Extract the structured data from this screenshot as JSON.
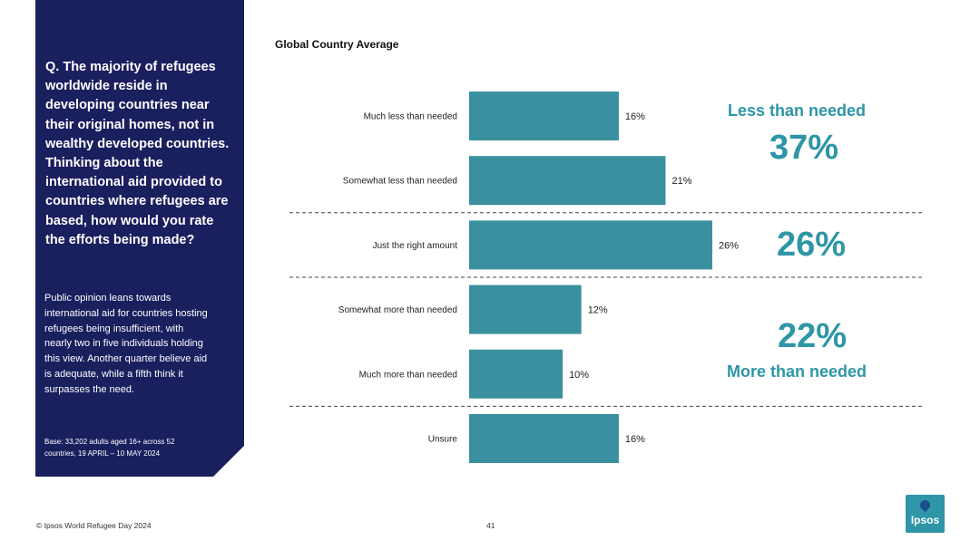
{
  "sidebar": {
    "question": "Q. The majority of refugees worldwide reside in developing countries near their original homes, not in wealthy developed countries. Thinking about the international aid provided to countries where refugees are based, how would you rate the efforts being made?",
    "summary": "Public opinion leans towards international aid for countries hosting refugees being insufficient, with nearly two in five individuals holding this view. Another quarter believe aid is adequate, while a fifth think it surpasses the need.",
    "base": "Base: 33,202 adults aged 16+ across 52 countries, 19 APRIL – 10 MAY 2024"
  },
  "groups": {
    "less_name": "Less than needed",
    "less_pct": "37%",
    "right_pct": "26%",
    "more_pct": "22%",
    "more_name": "More than needed"
  },
  "footer": {
    "copyright": "© Ipsos World Refugee Day 2024",
    "page": "41",
    "logo": "Ipsos"
  },
  "colors": {
    "bar": "#3a909e",
    "accent": "#2e96a6",
    "sidebar": "#1a1f5e"
  },
  "chart_data": {
    "type": "bar",
    "orientation": "horizontal",
    "title": "Global Country Average",
    "categories": [
      "Much less than needed",
      "Somewhat less than needed",
      "Just the right amount",
      "Somewhat more than needed",
      "Much more than needed",
      "Unsure"
    ],
    "values": [
      16,
      21,
      26,
      12,
      10,
      16
    ],
    "value_labels": [
      "16%",
      "21%",
      "26%",
      "12%",
      "10%",
      "16%"
    ],
    "xlim": [
      0,
      26
    ],
    "grid": false,
    "group_dividers_after": [
      1,
      2,
      4
    ]
  }
}
